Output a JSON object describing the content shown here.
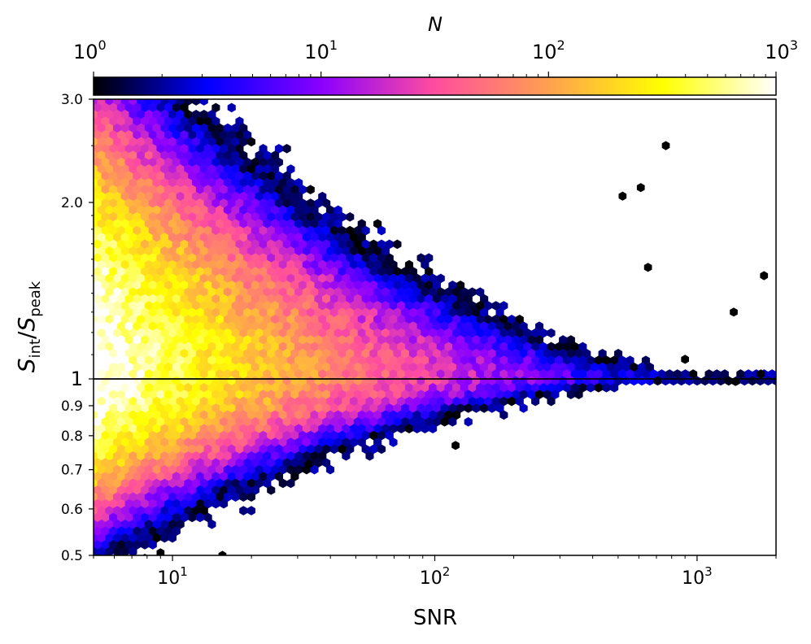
{
  "chart_data": {
    "type": "heatmap",
    "subtype": "hexbin",
    "x_scale": "log",
    "y_scale": "log",
    "xlim": [
      5,
      2000
    ],
    "ylim": [
      0.5,
      3.0
    ],
    "xlabel": "SNR",
    "ylabel": {
      "main": "S",
      "sub1": "int",
      "sep": "/",
      "main2": "S",
      "sub2": "peak"
    },
    "x_ticks": [
      {
        "value": 10,
        "base": "10",
        "exp": "1"
      },
      {
        "value": 100,
        "base": "10",
        "exp": "2"
      },
      {
        "value": 1000,
        "base": "10",
        "exp": "3"
      }
    ],
    "y_ticks": [
      {
        "value": 0.5,
        "label": "0.5"
      },
      {
        "value": 0.6,
        "label": "0.6"
      },
      {
        "value": 0.7,
        "label": "0.7"
      },
      {
        "value": 0.8,
        "label": "0.8"
      },
      {
        "value": 0.9,
        "label": "0.9"
      },
      {
        "value": 1.0,
        "label": "1"
      },
      {
        "value": 2.0,
        "label": "2.0"
      },
      {
        "value": 3.0,
        "label": "3.0"
      }
    ],
    "reference_line": {
      "y": 1.0,
      "color": "#000000"
    },
    "colorbar": {
      "label": "N",
      "scale": "log",
      "range": [
        1,
        1000
      ],
      "ticks": [
        {
          "value": 1,
          "base": "10",
          "exp": "0"
        },
        {
          "value": 10,
          "base": "10",
          "exp": "1"
        },
        {
          "value": 100,
          "base": "10",
          "exp": "2"
        },
        {
          "value": 1000,
          "base": "10",
          "exp": "3"
        }
      ],
      "colormap": "gnuplot2",
      "colormap_stops": [
        "#000000",
        "#0000ff",
        "#8a00ff",
        "#ff4d9e",
        "#ffa050",
        "#ffff00",
        "#ffffff"
      ]
    },
    "description_of_density": "Counts peak (~1000) near S_int/S_peak = 1 at low SNR; lower envelope rises from ~0.55 at SNR 5 to ~1.0 at SNR ~1000; upper envelope falls from >3 at low SNR to ~1 at SNR ~1000; sparse single-count outliers at high SNR up to ~1800.",
    "outliers": [
      {
        "x": 1800,
        "y": 1.5
      },
      {
        "x": 1380,
        "y": 1.3
      },
      {
        "x": 650,
        "y": 1.55
      },
      {
        "x": 520,
        "y": 2.05
      },
      {
        "x": 760,
        "y": 2.5
      },
      {
        "x": 610,
        "y": 2.12
      },
      {
        "x": 900,
        "y": 1.08
      },
      {
        "x": 1750,
        "y": 1.02
      },
      {
        "x": 1400,
        "y": 0.99
      },
      {
        "x": 120,
        "y": 0.77
      },
      {
        "x": 33,
        "y": 0.715
      },
      {
        "x": 15.5,
        "y": 0.5
      },
      {
        "x": 9,
        "y": 0.505
      }
    ]
  }
}
